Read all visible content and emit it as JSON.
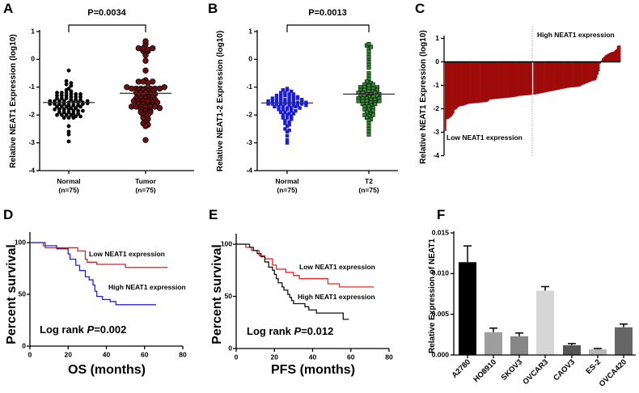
{
  "panels": {
    "A": {
      "letter": "A",
      "p_label": "P=0.0034",
      "ylabel": "Relative NEAT1 Expression (log10)",
      "cat1": "Normal",
      "n1": "(n=75)",
      "cat2": "Tumor",
      "n2": "(n=75)"
    },
    "B": {
      "letter": "B",
      "p_label": "P=0.0013",
      "ylabel": "Relative NEAT1-2 Expression (log10)",
      "cat1": "Normal",
      "n1": "(n=75)",
      "cat2": "T2",
      "n2": "(n=75)"
    },
    "C": {
      "letter": "C",
      "ylabel": "Relative NEAT1 Expression (log10)",
      "high_label": "High NEAT1 expression",
      "low_label": "Low NEAT1 expression"
    },
    "D": {
      "letter": "D",
      "ylabel": "Percent survival",
      "xlabel": "OS (months)",
      "low_label": "Low NEAT1 expression",
      "high_label": "High NEAT1 expression",
      "logrank_prefix": "Log rank ",
      "logrank_p": "P",
      "logrank_value": "=0.002"
    },
    "E": {
      "letter": "E",
      "ylabel": "Percent survival",
      "xlabel": "PFS (months)",
      "low_label": "Low NEAT1 expression",
      "high_label": "High NEAT1 expression",
      "logrank_prefix": "Log rank ",
      "logrank_p": "P",
      "logrank_value": "=0.012"
    },
    "F": {
      "letter": "F",
      "ylabel": "Relative Expression of NEAT1"
    }
  },
  "chart_data": [
    {
      "id": "A",
      "type": "scatter",
      "ylim": [
        -4,
        1
      ],
      "yticks": [
        -4,
        -3,
        -2,
        -1,
        0,
        1
      ],
      "series": [
        {
          "name": "Normal",
          "color": "#000000",
          "mean": -1.55,
          "values": [
            -0.4,
            -0.78,
            -0.85,
            -0.9,
            -0.95,
            -1.05,
            -1.1,
            -1.15,
            -1.2,
            -1.2,
            -1.2,
            -1.25,
            -1.25,
            -1.25,
            -1.3,
            -1.3,
            -1.3,
            -1.35,
            -1.35,
            -1.4,
            -1.4,
            -1.4,
            -1.45,
            -1.45,
            -1.5,
            -1.5,
            -1.5,
            -1.5,
            -1.55,
            -1.55,
            -1.55,
            -1.55,
            -1.6,
            -1.6,
            -1.6,
            -1.6,
            -1.65,
            -1.65,
            -1.65,
            -1.7,
            -1.7,
            -1.7,
            -1.75,
            -1.75,
            -1.8,
            -1.8,
            -1.8,
            -1.8,
            -1.85,
            -1.85,
            -1.85,
            -1.9,
            -1.9,
            -1.9,
            -1.95,
            -1.95,
            -2.0,
            -2.0,
            -2.0,
            -2.0,
            -2.05,
            -2.05,
            -2.1,
            -2.1,
            -2.1,
            -1.5,
            -1.45,
            -1.6,
            -1.7,
            -1.35,
            -2.4,
            -2.6,
            -2.7,
            -2.95,
            -1.58
          ]
        },
        {
          "name": "Tumor",
          "color": "#6b1010",
          "mean": -1.22,
          "values": [
            0.65,
            0.55,
            0.4,
            0.4,
            0.35,
            0.3,
            0.3,
            0.4,
            0.15,
            -0.05,
            -0.4,
            -0.75,
            -0.8,
            -0.8,
            -0.85,
            -0.8,
            -1.0,
            -1.05,
            -1.05,
            -1.05,
            -1.05,
            -1.05,
            -1.05,
            -1.05,
            -1.1,
            -1.1,
            -1.15,
            -1.2,
            -1.2,
            -1.2,
            -1.25,
            -1.25,
            -1.3,
            -1.3,
            -1.35,
            -1.4,
            -1.4,
            -1.4,
            -1.45,
            -1.45,
            -1.5,
            -1.5,
            -1.5,
            -1.5,
            -1.55,
            -1.55,
            -1.6,
            -1.6,
            -1.65,
            -1.7,
            -1.7,
            -1.7,
            -1.7,
            -1.7,
            -1.7,
            -1.75,
            -1.8,
            -1.85,
            -1.85,
            -1.9,
            -1.95,
            -2.0,
            -2.0,
            -2.1,
            -2.15,
            -2.25,
            -2.3,
            -2.35,
            -2.4,
            -1.65,
            -1.35,
            -1.15,
            -1.0,
            -2.9,
            -1.9
          ]
        }
      ]
    },
    {
      "id": "B",
      "type": "scatter",
      "ylim": [
        -4,
        1
      ],
      "yticks": [
        -4,
        -3,
        -2,
        -1,
        0,
        1
      ],
      "series": [
        {
          "name": "Normal",
          "color": "#1c1cd4",
          "mean": -1.57,
          "values": [
            -1.05,
            -1.1,
            -1.1,
            -1.15,
            -1.2,
            -1.2,
            -1.25,
            -1.25,
            -1.3,
            -1.3,
            -1.3,
            -1.35,
            -1.35,
            -1.4,
            -1.4,
            -1.4,
            -1.45,
            -1.45,
            -1.45,
            -1.5,
            -1.5,
            -1.5,
            -1.5,
            -1.55,
            -1.55,
            -1.55,
            -1.55,
            -1.6,
            -1.6,
            -1.6,
            -1.6,
            -1.6,
            -1.65,
            -1.65,
            -1.65,
            -1.7,
            -1.7,
            -1.7,
            -1.75,
            -1.75,
            -1.8,
            -1.8,
            -1.8,
            -1.85,
            -1.85,
            -1.9,
            -1.9,
            -1.95,
            -1.95,
            -2.0,
            -2.0,
            -2.05,
            -2.1,
            -2.1,
            -2.15,
            -2.2,
            -2.25,
            -2.3,
            -2.35,
            -2.4,
            -2.5,
            -2.55,
            -2.6,
            -2.75,
            -2.9,
            -3.0,
            -1.5,
            -1.6,
            -1.4,
            -1.7,
            -1.55,
            -1.45,
            -1.65,
            -1.35,
            -1.75
          ]
        },
        {
          "name": "T2",
          "color": "#2e8b2e",
          "mean": -1.25,
          "values": [
            0.55,
            0.5,
            0.45,
            0.4,
            0.3,
            0.2,
            0.1,
            0.0,
            -0.1,
            -0.2,
            -0.3,
            -0.5,
            -0.6,
            -0.7,
            -0.8,
            -0.85,
            -0.9,
            -0.95,
            -1.0,
            -1.0,
            -1.05,
            -1.05,
            -1.1,
            -1.1,
            -1.15,
            -1.15,
            -1.2,
            -1.2,
            -1.25,
            -1.25,
            -1.3,
            -1.3,
            -1.35,
            -1.35,
            -1.4,
            -1.4,
            -1.4,
            -1.45,
            -1.45,
            -1.5,
            -1.5,
            -1.5,
            -1.55,
            -1.55,
            -1.6,
            -1.6,
            -1.65,
            -1.7,
            -1.7,
            -1.75,
            -1.8,
            -1.8,
            -1.85,
            -1.9,
            -1.95,
            -2.0,
            -2.05,
            -2.1,
            -2.15,
            -2.2,
            -2.3,
            -2.4,
            -2.5,
            -2.6,
            -2.7,
            -1.3,
            -1.2,
            -1.4,
            -1.6,
            -1.1,
            -1.0,
            -0.9,
            -2.0,
            -1.5,
            -1.25
          ]
        }
      ]
    },
    {
      "id": "C",
      "type": "bar",
      "ylim": [
        -4,
        1
      ],
      "yticks": [
        -4,
        -3,
        -2,
        -1,
        0,
        1
      ],
      "color": "#9e0b0b",
      "low_group": [
        -2.95,
        -2.45,
        -2.43,
        -2.41,
        -2.38,
        -2.33,
        -2.28,
        -2.2,
        -2.05,
        -2.02,
        -1.98,
        -1.93,
        -1.9,
        -1.89,
        -1.88,
        -1.87,
        -1.86,
        -1.84,
        -1.82,
        -1.8,
        -1.79,
        -1.78,
        -1.78,
        -1.77,
        -1.77,
        -1.76,
        -1.76,
        -1.75,
        -1.75,
        -1.74,
        -1.74,
        -1.73,
        -1.73,
        -1.72,
        -1.72,
        -1.71,
        -1.7,
        -1.66,
        -1.62,
        -1.6,
        -1.6,
        -1.59,
        -1.59,
        -1.58,
        -1.58,
        -1.57,
        -1.57,
        -1.56,
        -1.56,
        -1.55,
        -1.55,
        -1.54,
        -1.54,
        -1.53,
        -1.53,
        -1.52,
        -1.52,
        -1.51,
        -1.5,
        -1.5,
        -1.49,
        -1.48,
        -1.47,
        -1.46,
        -1.45,
        -1.45,
        -1.44,
        -1.44,
        -1.43,
        -1.43,
        -1.42,
        -1.42,
        -1.41,
        -1.41,
        -1.4
      ],
      "high_group": [
        -1.4,
        -1.39,
        -1.38,
        -1.37,
        -1.36,
        -1.35,
        -1.34,
        -1.33,
        -1.32,
        -1.31,
        -1.3,
        -1.29,
        -1.28,
        -1.27,
        -1.26,
        -1.25,
        -1.24,
        -1.23,
        -1.22,
        -1.21,
        -1.2,
        -1.19,
        -1.18,
        -1.17,
        -1.16,
        -1.15,
        -1.14,
        -1.13,
        -1.12,
        -1.11,
        -1.1,
        -1.1,
        -1.09,
        -1.09,
        -1.08,
        -1.08,
        -1.07,
        -1.07,
        -1.06,
        -1.05,
        -1.04,
        -1.0,
        -0.98,
        -0.96,
        -0.94,
        -0.92,
        -0.9,
        -0.88,
        -0.86,
        -0.84,
        -0.82,
        -0.8,
        -0.8,
        -0.78,
        -0.7,
        -0.55,
        -0.4,
        -0.08,
        0.05,
        0.15,
        0.2,
        0.25,
        0.3,
        0.32,
        0.35,
        0.38,
        0.4,
        0.42,
        0.43,
        0.45,
        0.5,
        0.55,
        0.68,
        0.7,
        0.7
      ]
    },
    {
      "id": "D",
      "type": "line",
      "xlim": [
        0,
        80
      ],
      "ylim": [
        0,
        100
      ],
      "xticks": [
        0,
        20,
        40,
        60,
        80
      ],
      "yticks": [
        0,
        50,
        100
      ],
      "series": [
        {
          "name": "Low NEAT1 expression",
          "color": "#b03030",
          "steps": [
            [
              0,
              100
            ],
            [
              7,
              97
            ],
            [
              8,
              95
            ],
            [
              25,
              92
            ],
            [
              29,
              84
            ],
            [
              30,
              81
            ],
            [
              35,
              79
            ],
            [
              50,
              76
            ],
            [
              72,
              76
            ]
          ]
        },
        {
          "name": "High NEAT1 expression",
          "color": "#2424c8",
          "steps": [
            [
              0,
              100
            ],
            [
              8,
              97
            ],
            [
              14,
              94
            ],
            [
              20,
              89
            ],
            [
              21,
              84
            ],
            [
              24,
              78
            ],
            [
              26,
              73
            ],
            [
              29,
              67
            ],
            [
              31,
              64
            ],
            [
              33,
              59
            ],
            [
              34,
              53
            ],
            [
              35,
              48
            ],
            [
              38,
              45
            ],
            [
              42,
              43
            ],
            [
              45,
              40
            ],
            [
              66,
              40
            ]
          ]
        }
      ]
    },
    {
      "id": "E",
      "type": "line",
      "xlim": [
        0,
        80
      ],
      "ylim": [
        0,
        100
      ],
      "xticks": [
        0,
        20,
        40,
        60,
        80
      ],
      "yticks": [
        0,
        50,
        100
      ],
      "series": [
        {
          "name": "Low NEAT1 expression",
          "color": "#e82828",
          "steps": [
            [
              0,
              100
            ],
            [
              5,
              97
            ],
            [
              8,
              94
            ],
            [
              12,
              89
            ],
            [
              15,
              86
            ],
            [
              19,
              80
            ],
            [
              21,
              76
            ],
            [
              26,
              73
            ],
            [
              30,
              70
            ],
            [
              33,
              67
            ],
            [
              48,
              62
            ],
            [
              54,
              59
            ],
            [
              72,
              59
            ]
          ]
        },
        {
          "name": "High NEAT1 expression",
          "color": "#111111",
          "steps": [
            [
              0,
              100
            ],
            [
              7,
              97
            ],
            [
              9,
              94
            ],
            [
              11,
              91
            ],
            [
              13,
              88
            ],
            [
              15,
              83
            ],
            [
              17,
              78
            ],
            [
              19,
              75
            ],
            [
              20,
              71
            ],
            [
              21,
              67
            ],
            [
              22,
              63
            ],
            [
              24,
              59
            ],
            [
              25,
              56
            ],
            [
              27,
              52
            ],
            [
              28,
              49
            ],
            [
              29,
              46
            ],
            [
              30,
              43
            ],
            [
              36,
              40
            ],
            [
              38,
              37
            ],
            [
              42,
              34
            ],
            [
              56,
              28
            ],
            [
              59,
              28
            ]
          ]
        }
      ]
    },
    {
      "id": "F",
      "type": "bar",
      "ylim": [
        0,
        0.015
      ],
      "yticks": [
        "0.000",
        "0.005",
        "0.010",
        "0.015"
      ],
      "categories": [
        "A2780",
        "HO8910",
        "SKOV3",
        "OVCAR3",
        "CAOV3",
        "ES-2",
        "OVCA420"
      ],
      "values": [
        0.0114,
        0.0028,
        0.0023,
        0.0079,
        0.0012,
        0.0007,
        0.0034
      ],
      "errors": [
        0.002,
        0.0005,
        0.0004,
        0.0005,
        0.0002,
        0.0001,
        0.0004
      ],
      "colors": [
        "#000000",
        "#9e9e9e",
        "#878787",
        "#d6d6d6",
        "#555555",
        "#b8b8b8",
        "#666666"
      ]
    }
  ]
}
